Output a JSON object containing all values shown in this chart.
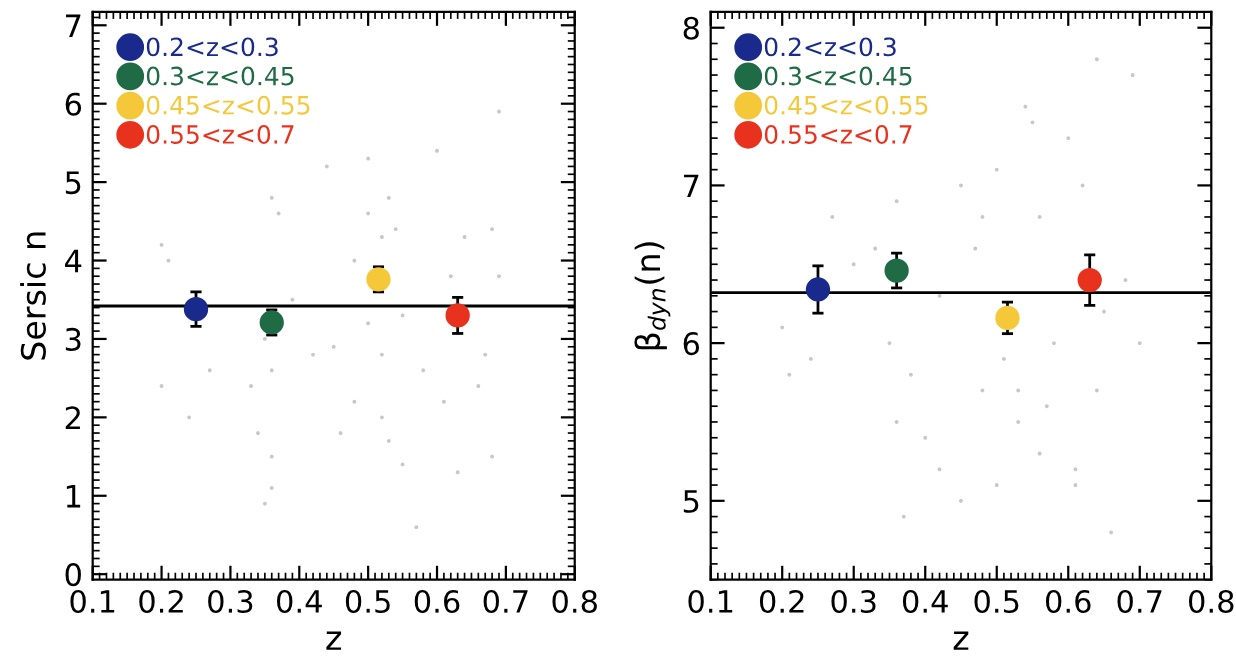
{
  "chart_data": [
    {
      "type": "scatter",
      "xlabel": "z",
      "ylabel": "Sersic n",
      "xlim": [
        0.1,
        0.8
      ],
      "ylim": [
        -0.07,
        7.17
      ],
      "xticks": [
        0.1,
        0.2,
        0.3,
        0.4,
        0.5,
        0.6,
        0.7,
        0.8
      ],
      "yticks": [
        0,
        1,
        2,
        3,
        4,
        5,
        6,
        7
      ],
      "grid": false,
      "legend": "top left",
      "marker": "circle",
      "ref_lines": [
        {
          "axis": "y",
          "value": 3.42,
          "color": "#000000"
        }
      ],
      "series": [
        {
          "color": "#c8c8c8",
          "x": [
            0.2,
            0.21,
            0.2,
            0.24,
            0.27,
            0.33,
            0.34,
            0.36,
            0.35,
            0.36,
            0.36,
            0.35,
            0.37,
            0.36,
            0.39,
            0.42,
            0.44,
            0.46,
            0.48,
            0.48,
            0.5,
            0.5,
            0.5,
            0.52,
            0.52,
            0.53,
            0.53,
            0.54,
            0.55,
            0.55,
            0.57,
            0.58,
            0.6,
            0.61,
            0.62,
            0.63,
            0.64,
            0.66,
            0.67,
            0.68,
            0.68,
            0.69,
            0.69,
            0.45,
            0.52
          ],
          "values": [
            4.2,
            4.0,
            2.4,
            2.0,
            2.6,
            2.4,
            1.8,
            1.5,
            0.9,
            1.1,
            2.6,
            3.0,
            4.6,
            4.8,
            3.5,
            2.8,
            5.2,
            1.8,
            2.2,
            4.0,
            4.6,
            3.2,
            5.3,
            4.3,
            2.0,
            1.7,
            4.8,
            4.4,
            1.4,
            3.3,
            0.6,
            2.6,
            5.4,
            2.2,
            3.8,
            1.3,
            4.3,
            2.4,
            2.8,
            1.5,
            4.4,
            3.8,
            5.9,
            2.9,
            2.8
          ]
        },
        {
          "name": "0.2<z<0.3",
          "color": "#1a2a8c",
          "x": [
            0.25
          ],
          "values": [
            3.38
          ],
          "errors": [
            0.22
          ]
        },
        {
          "name": "0.3<z<0.45",
          "color": "#1f6b45",
          "x": [
            0.36
          ],
          "values": [
            3.21
          ],
          "errors": [
            0.16
          ]
        },
        {
          "name": "0.45<z<0.55",
          "color": "#f5c83a",
          "x": [
            0.515
          ],
          "values": [
            3.76
          ],
          "errors": [
            0.16
          ]
        },
        {
          "name": "0.55<z<0.7",
          "color": "#e8321e",
          "x": [
            0.63
          ],
          "values": [
            3.3
          ],
          "errors": [
            0.23
          ]
        }
      ]
    },
    {
      "type": "scatter",
      "xlabel": "z",
      "ylabel": "β$_{dyn}$(n)",
      "xlim": [
        0.1,
        0.8
      ],
      "ylim": [
        4.5,
        8.1
      ],
      "xticks": [
        0.1,
        0.2,
        0.3,
        0.4,
        0.5,
        0.6,
        0.7,
        0.8
      ],
      "yticks": [
        5,
        6,
        7,
        8
      ],
      "grid": false,
      "legend": "top left",
      "marker": "circle",
      "ref_lines": [
        {
          "axis": "y",
          "value": 6.32,
          "color": "#000000"
        }
      ],
      "series": [
        {
          "color": "#c8c8c8",
          "x": [
            0.2,
            0.21,
            0.24,
            0.27,
            0.3,
            0.33,
            0.35,
            0.36,
            0.36,
            0.38,
            0.37,
            0.4,
            0.42,
            0.42,
            0.45,
            0.45,
            0.47,
            0.48,
            0.5,
            0.5,
            0.51,
            0.53,
            0.53,
            0.54,
            0.55,
            0.56,
            0.56,
            0.57,
            0.58,
            0.6,
            0.61,
            0.61,
            0.62,
            0.64,
            0.64,
            0.65,
            0.66,
            0.68,
            0.69,
            0.7,
            0.48
          ],
          "values": [
            6.1,
            5.8,
            5.9,
            6.8,
            6.5,
            6.6,
            6.0,
            6.9,
            5.5,
            5.8,
            4.9,
            5.4,
            5.2,
            6.3,
            5.0,
            7.0,
            6.6,
            5.7,
            5.1,
            7.1,
            5.9,
            5.5,
            5.7,
            7.5,
            7.4,
            5.3,
            6.8,
            5.6,
            6.0,
            7.3,
            5.1,
            5.2,
            7.0,
            5.7,
            7.8,
            6.2,
            4.8,
            6.4,
            7.7,
            6.0,
            6.8
          ]
        },
        {
          "name": "0.2<z<0.3",
          "color": "#1a2a8c",
          "x": [
            0.25
          ],
          "values": [
            6.34
          ],
          "errors": [
            0.15
          ]
        },
        {
          "name": "0.3<z<0.45",
          "color": "#1f6b45",
          "x": [
            0.36
          ],
          "values": [
            6.46
          ],
          "errors": [
            0.11
          ]
        },
        {
          "name": "0.45<z<0.55",
          "color": "#f5c83a",
          "x": [
            0.515
          ],
          "values": [
            6.16
          ],
          "errors": [
            0.1
          ]
        },
        {
          "name": "0.55<z<0.7",
          "color": "#e8321e",
          "x": [
            0.63
          ],
          "values": [
            6.4
          ],
          "errors": [
            0.16
          ]
        }
      ]
    }
  ]
}
